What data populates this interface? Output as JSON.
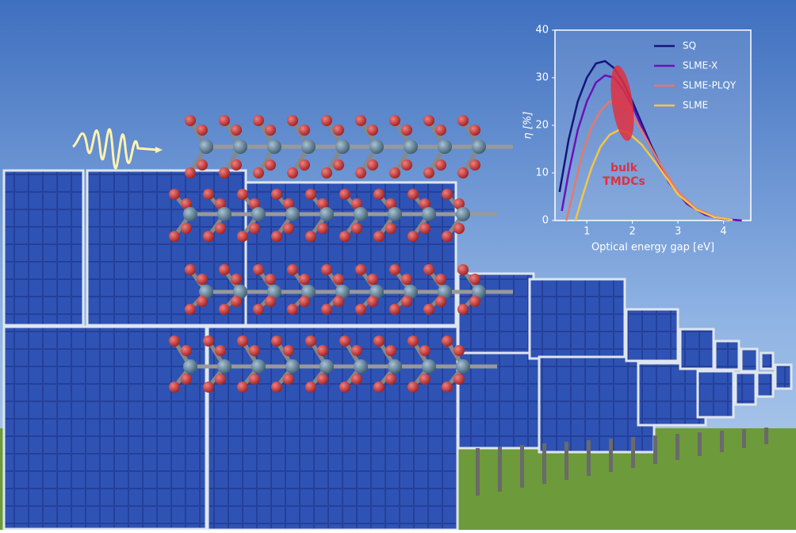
{
  "chart_data": {
    "type": "line",
    "xlabel": "Optical energy gap [eV]",
    "ylabel": "η [%]",
    "xlim": [
      0.3,
      4.6
    ],
    "ylim": [
      0,
      40
    ],
    "xticks": [
      1,
      2,
      3,
      4
    ],
    "yticks": [
      0,
      10,
      20,
      30,
      40
    ],
    "legend": "upper right",
    "annotation": [
      "bulk",
      "TMDCs"
    ],
    "annotation_color": "#e03040",
    "series": [
      {
        "name": "SQ",
        "color": "#15157a",
        "x": [
          0.4,
          0.6,
          0.8,
          1.0,
          1.2,
          1.4,
          1.6,
          1.8,
          2.0,
          2.4,
          2.8,
          3.2,
          3.6,
          4.0,
          4.4
        ],
        "values": [
          6,
          17,
          25,
          30,
          33,
          33.5,
          32,
          29,
          25,
          16,
          8,
          3.5,
          1.2,
          0.3,
          0
        ]
      },
      {
        "name": "SLME-X",
        "color": "#6a12b8",
        "x": [
          0.45,
          0.6,
          0.8,
          1.0,
          1.2,
          1.4,
          1.6,
          1.8,
          2.0,
          2.4,
          2.8,
          3.2,
          3.6,
          4.0,
          4.4
        ],
        "values": [
          2,
          10,
          19,
          25,
          29,
          30.5,
          30,
          27.5,
          24,
          15.5,
          8,
          3.5,
          1.2,
          0.3,
          0
        ]
      },
      {
        "name": "SLME-PLQY",
        "color": "#e8776a",
        "x": [
          0.55,
          0.7,
          0.9,
          1.1,
          1.3,
          1.5,
          1.7,
          1.9,
          2.2,
          2.6,
          3.0,
          3.4,
          3.8,
          4.2
        ],
        "values": [
          0,
          6,
          14,
          19.5,
          23,
          25,
          25,
          23.5,
          19,
          12,
          6,
          2.5,
          0.8,
          0.1
        ]
      },
      {
        "name": "SLME",
        "color": "#f5c542",
        "x": [
          0.75,
          0.9,
          1.1,
          1.3,
          1.5,
          1.7,
          1.9,
          2.2,
          2.6,
          3.0,
          3.4,
          3.8,
          4.2
        ],
        "values": [
          0,
          5,
          11,
          15.5,
          18,
          19,
          18.5,
          16,
          11,
          5.5,
          2.3,
          0.7,
          0.1
        ]
      }
    ]
  }
}
